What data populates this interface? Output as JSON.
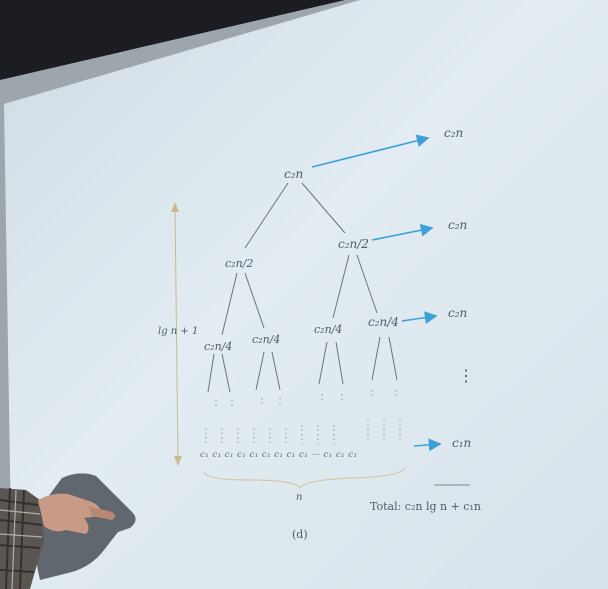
{
  "tree": {
    "root": "c₂n",
    "level1": [
      "c₂n/2",
      "c₂n/2"
    ],
    "level2": [
      "c₂n/4",
      "c₂n/4",
      "c₂n/4",
      "c₂n/4"
    ],
    "leaves": "c₁ c₁ c₁ c₁ c₁ c₁ c₁ c₁ c₁ ⋯ c₁ c₁ c₁"
  },
  "level_costs": [
    "c₂n",
    "c₂n",
    "c₂n",
    "c₁n"
  ],
  "vertical_dots": "⋮",
  "height_label": "lg n + 1",
  "leaf_count_label": "n",
  "total_label": "Total: c₂n lg n + c₁n",
  "figure_label": "(d)",
  "colors": {
    "screen": "#dfe9f0",
    "arrow": "#3fa0d8",
    "ink": "#4f5a6a",
    "brace": "#d8c9a4"
  }
}
